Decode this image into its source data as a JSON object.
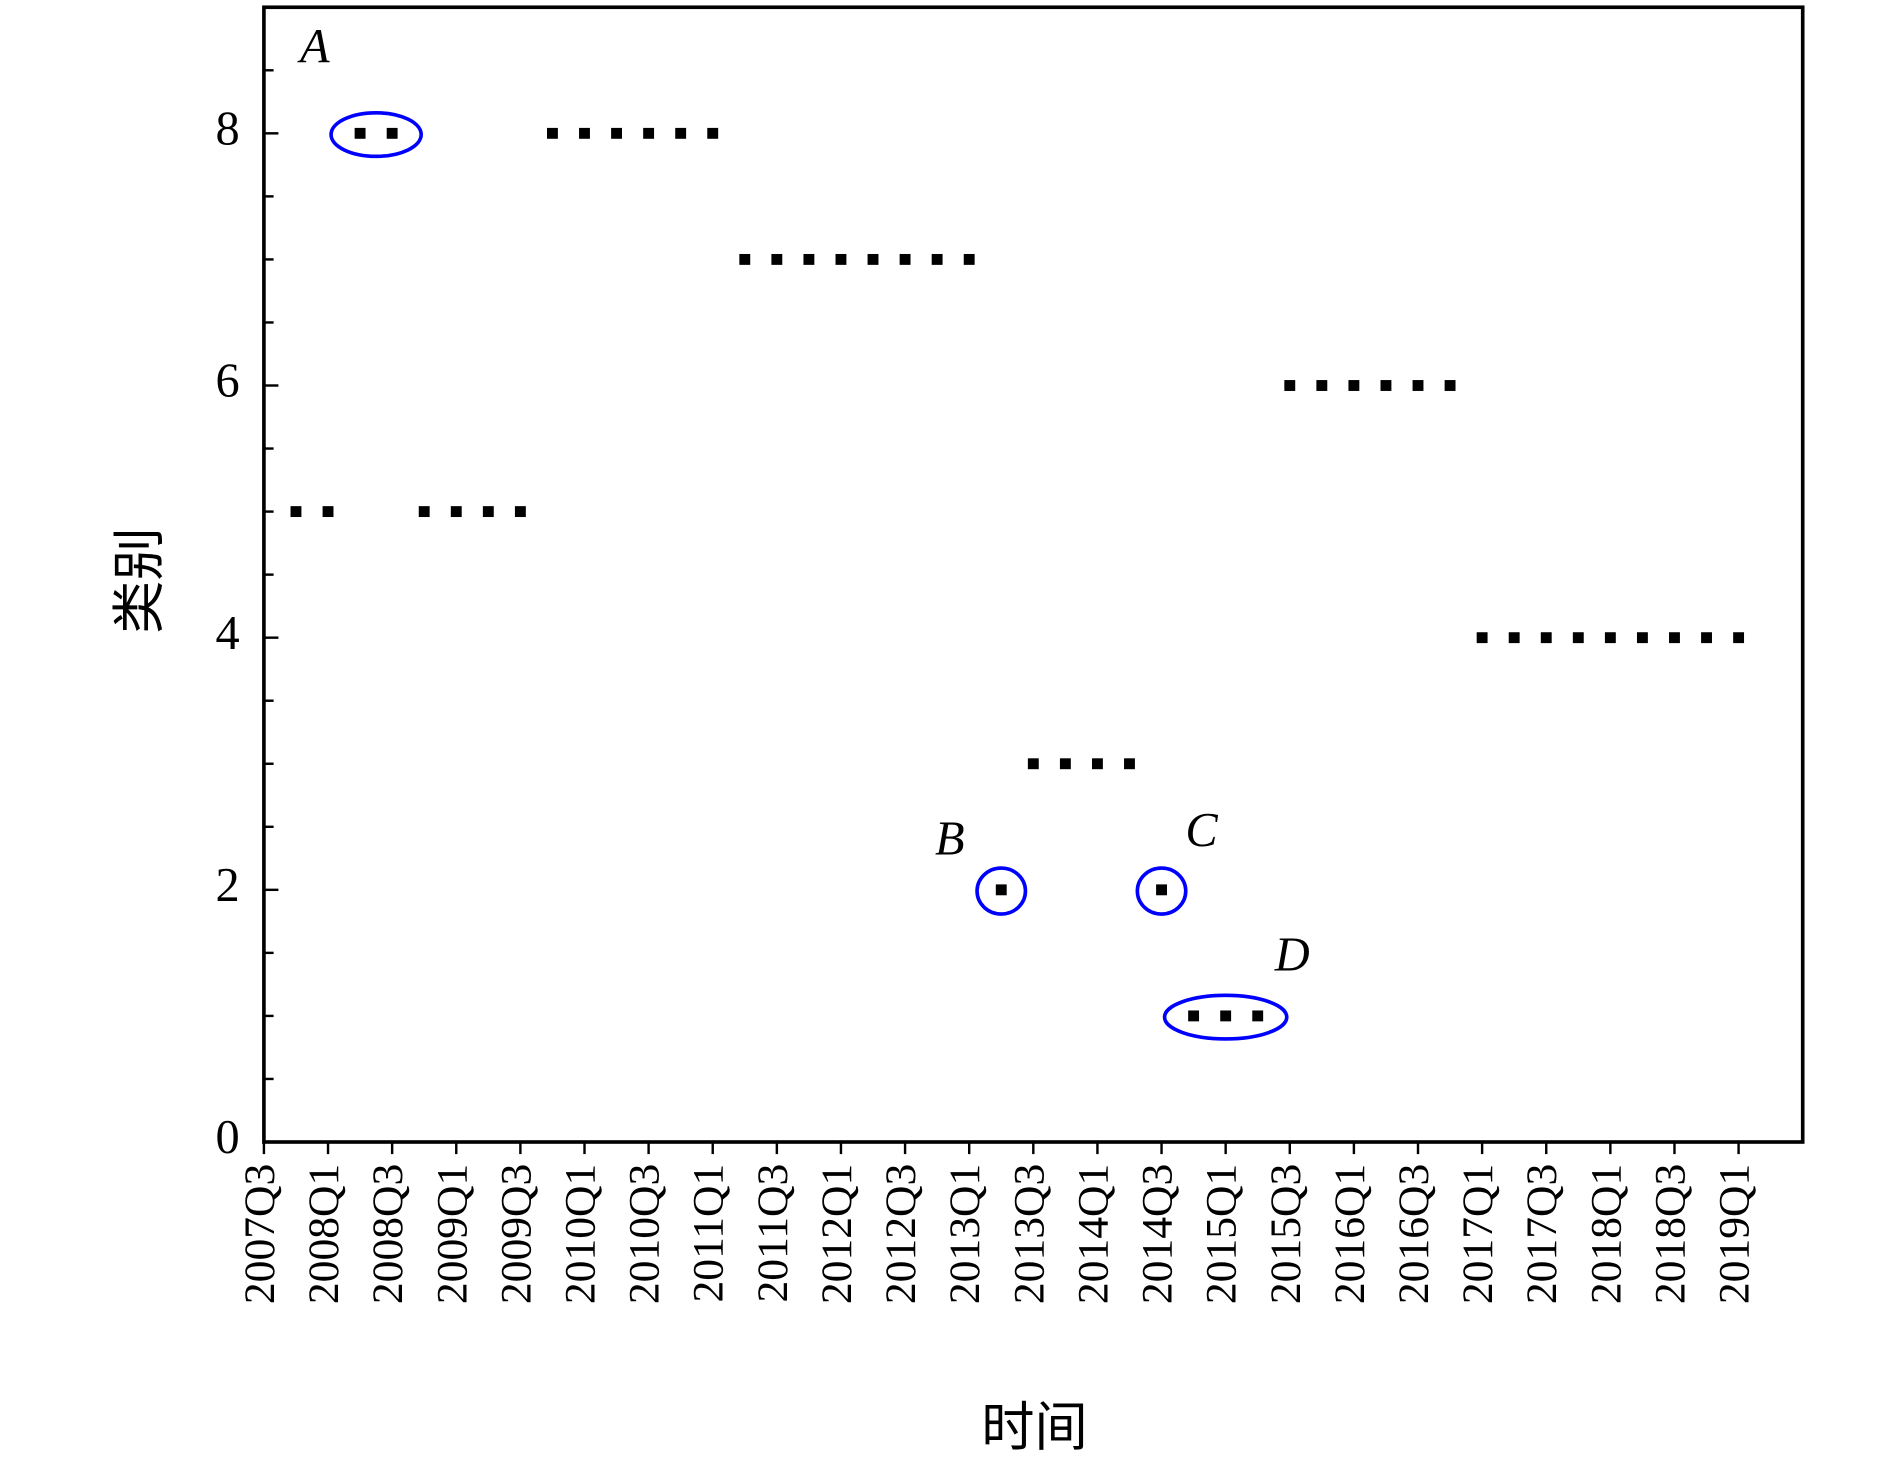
{
  "chart_data": {
    "type": "scatter",
    "xlabel": "时间",
    "ylabel": "类别",
    "categories": [
      "2007Q3",
      null,
      "2008Q1",
      null,
      "2008Q3",
      null,
      "2009Q1",
      null,
      "2009Q3",
      null,
      "2010Q1",
      null,
      "2010Q3",
      null,
      "2011Q1",
      null,
      "2011Q3",
      null,
      "2012Q1",
      null,
      "2012Q3",
      null,
      "2013Q1",
      null,
      "2013Q3",
      null,
      "2014Q1",
      null,
      "2014Q3",
      null,
      "2015Q1",
      null,
      "2015Q3",
      null,
      "2016Q1",
      null,
      "2016Q3",
      null,
      "2017Q1",
      null,
      "2017Q3",
      null,
      "2018Q1",
      null,
      "2018Q3",
      null,
      "2019Q1"
    ],
    "values": [
      null,
      5,
      5,
      8,
      8,
      5,
      5,
      5,
      5,
      8,
      8,
      8,
      8,
      8,
      8,
      7,
      7,
      7,
      7,
      7,
      7,
      7,
      7,
      2,
      3,
      3,
      3,
      3,
      2,
      1,
      1,
      1,
      6,
      6,
      6,
      6,
      6,
      6,
      4,
      4,
      4,
      4,
      4,
      4,
      4,
      4,
      4
    ],
    "color": "#000000",
    "highlight_color": "#0000ff",
    "ylim": [
      0,
      9
    ],
    "yticks": [
      0,
      2,
      4,
      6,
      8
    ],
    "yticks_minor": [
      0.5,
      1,
      1.5,
      2.5,
      3,
      3.5,
      4.5,
      5,
      5.5,
      6.5,
      7,
      7.5,
      8.5
    ],
    "annotations": [
      "A",
      "B",
      "C",
      "D"
    ]
  }
}
